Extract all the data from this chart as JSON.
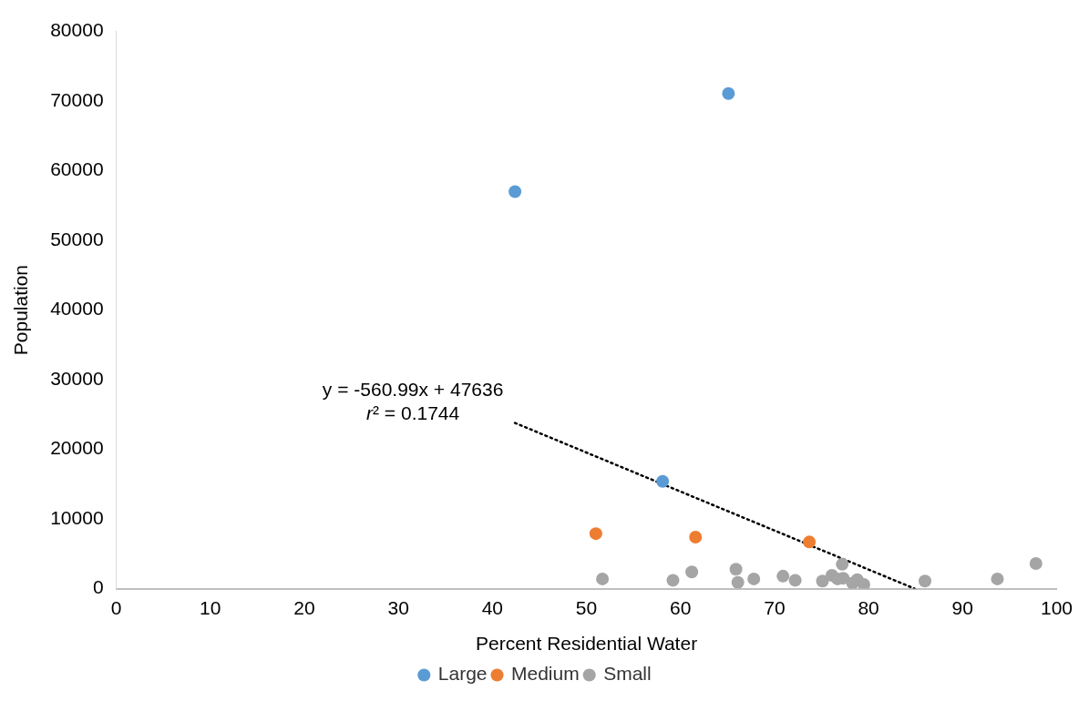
{
  "chart_data": {
    "type": "scatter",
    "xlabel": "Percent Residential Water",
    "ylabel": "Population",
    "xlim": [
      0,
      100
    ],
    "xticks": [
      0,
      10,
      20,
      30,
      40,
      50,
      60,
      70,
      80,
      90,
      100
    ],
    "ylim": [
      0,
      80000
    ],
    "yticks": [
      0,
      10000,
      20000,
      30000,
      40000,
      50000,
      60000,
      70000,
      80000
    ],
    "grid": false,
    "legend": "bottom",
    "marker": "circle",
    "annotations": [
      "y = -560.99x + 47636",
      "r² = 0.1744"
    ],
    "series": [
      {
        "name": "Large",
        "color": "#5b9bd5",
        "x": [
          42.4,
          65.1,
          58.1
        ],
        "values": [
          57000,
          71100,
          15400
        ]
      },
      {
        "name": "Medium",
        "color": "#ed7d31",
        "x": [
          51.0,
          61.6,
          73.7
        ],
        "values": [
          7900,
          7400,
          6700
        ]
      },
      {
        "name": "Small",
        "color": "#a5a5a5",
        "x": [
          51.7,
          59.2,
          61.2,
          65.9,
          66.1,
          67.8,
          70.9,
          72.2,
          75.1,
          76.1,
          76.7,
          77.2,
          77.3,
          78.3,
          78.8,
          79.5,
          86.0,
          93.7,
          97.8
        ],
        "values": [
          1400,
          1200,
          2400,
          2800,
          900,
          1400,
          1800,
          1200,
          1100,
          1900,
          1400,
          3500,
          1500,
          800,
          1300,
          600,
          1100,
          1400,
          3600
        ]
      },
      {
        "type": "line",
        "color": "#000000",
        "line_style": "dotted",
        "marker": "none",
        "x": [
          42.4,
          84.9
        ],
        "values": [
          23800,
          0
        ]
      }
    ]
  }
}
